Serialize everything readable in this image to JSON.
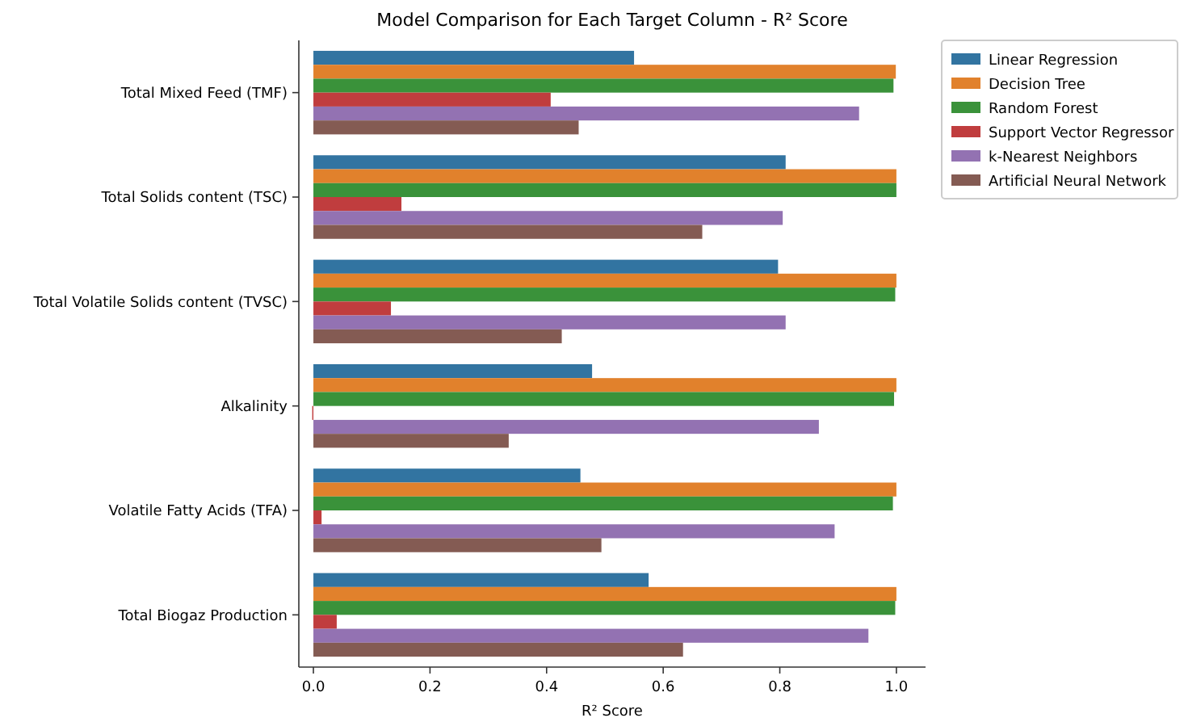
{
  "chart_data": {
    "type": "bar",
    "orientation": "horizontal",
    "title": "Model Comparison for Each Target Column - R² Score",
    "xlabel": "R² Score",
    "categories": [
      "Total Mixed Feed (TMF)",
      "Total Solids content (TSC)",
      "Total Volatile Solids content (TVSC)",
      "Alkalinity",
      "Volatile Fatty Acids (TFA)",
      "Total Biogaz Production"
    ],
    "series": [
      {
        "name": "Linear Regression",
        "color": "#3274a1",
        "values": [
          0.55,
          0.81,
          0.797,
          0.478,
          0.458,
          0.575
        ]
      },
      {
        "name": "Decision Tree",
        "color": "#e1812c",
        "values": [
          0.999,
          1.0,
          1.0,
          1.0,
          1.0,
          1.0
        ]
      },
      {
        "name": "Random Forest",
        "color": "#3a923a",
        "values": [
          0.995,
          1.0,
          0.998,
          0.996,
          0.994,
          0.998
        ]
      },
      {
        "name": "Support Vector Regressor",
        "color": "#c03d3e",
        "values": [
          0.407,
          0.151,
          0.133,
          -0.002,
          0.014,
          0.04
        ]
      },
      {
        "name": "k-Nearest Neighbors",
        "color": "#9372b2",
        "values": [
          0.936,
          0.805,
          0.81,
          0.867,
          0.894,
          0.952
        ]
      },
      {
        "name": "Artificial Neural Network",
        "color": "#845b53",
        "values": [
          0.455,
          0.667,
          0.426,
          0.335,
          0.494,
          0.634
        ]
      }
    ],
    "xlim": [
      -0.025,
      1.05
    ],
    "xticks": [
      {
        "value": 0,
        "label": "0.0"
      },
      {
        "value": 0.2,
        "label": "0.2"
      },
      {
        "value": 0.4,
        "label": "0.4"
      },
      {
        "value": 0.6,
        "label": "0.6"
      },
      {
        "value": 0.8,
        "label": "0.8"
      },
      {
        "value": 1,
        "label": "1.0"
      }
    ],
    "grid": false,
    "legend": "right"
  }
}
